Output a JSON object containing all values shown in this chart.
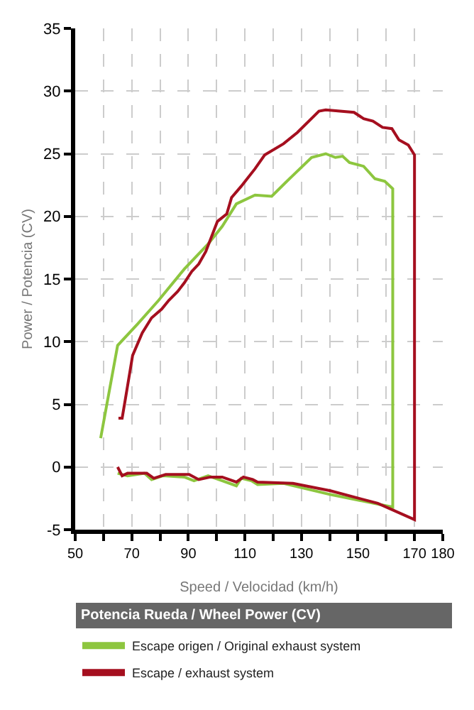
{
  "chart_data": {
    "type": "line",
    "xlabel": "Speed / Velocidad (km/h)",
    "ylabel": "Power / Potencia (CV)",
    "legend_title": "Potencia Rueda / Wheel Power (CV)",
    "xlim": [
      50,
      180
    ],
    "ylim": [
      -5,
      35
    ],
    "xticks": [
      50,
      {
        "value": 60,
        "label": null
      },
      70,
      {
        "value": 80,
        "label": null
      },
      90,
      {
        "value": 100,
        "label": null
      },
      110,
      {
        "value": 120,
        "label": null
      },
      130,
      {
        "value": 140,
        "label": null
      },
      150,
      {
        "value": 160,
        "label": null
      },
      170,
      180
    ],
    "yticks": [
      -5,
      0,
      5,
      10,
      15,
      20,
      25,
      30,
      35
    ],
    "grid": true,
    "legend": "bottom",
    "line_style": "solid",
    "series": [
      {
        "name": "Escape origen / Original exhaust system",
        "color": "#8dc63f",
        "x": [
          59,
          65,
          72,
          79.5,
          88.6,
          97,
          102,
          107,
          113.6,
          119.5,
          125.3,
          133.6,
          138.6,
          142,
          144.6,
          147,
          152,
          156,
          159.5,
          162.3,
          162.3,
          140.3,
          123.7,
          114.5,
          112.3,
          108.7,
          107,
          102,
          97,
          92,
          88.6,
          81,
          77,
          74.5,
          68.5,
          65
        ],
        "values": [
          2.3,
          9.7,
          11.4,
          13.3,
          15.8,
          17.8,
          19.2,
          21.0,
          21.7,
          21.6,
          22.9,
          24.7,
          25.0,
          24.7,
          24.8,
          24.3,
          24.0,
          23.0,
          22.8,
          22.2,
          -3.2,
          -2.2,
          -1.3,
          -1.4,
          -1.1,
          -0.9,
          -1.5,
          -1.1,
          -0.7,
          -1.1,
          -0.8,
          -0.7,
          -1.0,
          -0.5,
          -0.7,
          -0.5
        ]
      },
      {
        "name": "Escape / exhaust system",
        "color": "#a50f1f",
        "x": [
          65.3,
          66.6,
          67.8,
          70.3,
          73.7,
          77,
          80.6,
          83.1,
          86.2,
          88.6,
          91.2,
          93.7,
          96.2,
          100.3,
          103.6,
          105.3,
          108.7,
          113.6,
          117,
          123.7,
          128.6,
          136.2,
          138.6,
          148.6,
          152,
          155.3,
          158.7,
          162,
          164.5,
          167.8,
          170,
          170,
          157,
          140.3,
          127,
          114.5,
          112.8,
          109.5,
          107,
          102,
          97.8,
          93.7,
          90.3,
          82,
          77.8,
          75.3,
          68.5,
          66.6,
          65
        ],
        "values": [
          3.9,
          3.9,
          5.5,
          8.9,
          10.7,
          11.9,
          12.6,
          13.3,
          14.0,
          14.7,
          15.6,
          16.2,
          17.2,
          19.6,
          20.2,
          21.5,
          22.4,
          23.8,
          24.9,
          25.8,
          26.7,
          28.4,
          28.5,
          28.3,
          27.8,
          27.6,
          27.1,
          27.0,
          26.1,
          25.7,
          24.9,
          -4.2,
          -2.9,
          -1.9,
          -1.3,
          -1.2,
          -1.0,
          -0.8,
          -1.2,
          -0.8,
          -0.8,
          -1.0,
          -0.6,
          -0.6,
          -0.9,
          -0.5,
          -0.5,
          -0.7,
          0.0
        ]
      }
    ]
  }
}
